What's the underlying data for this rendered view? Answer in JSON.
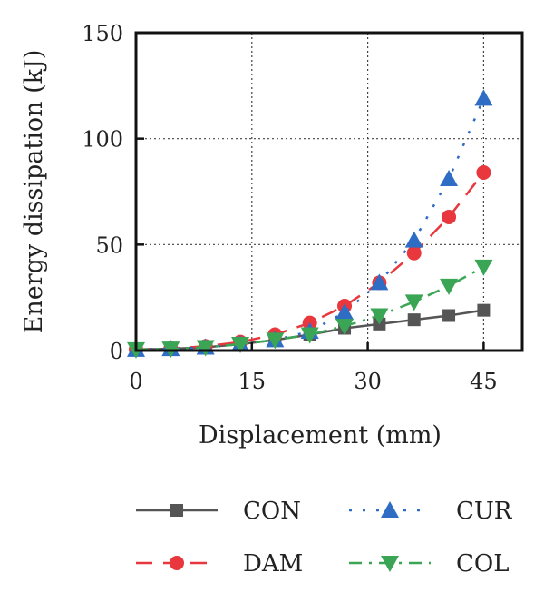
{
  "chart_data": {
    "type": "line",
    "title": "",
    "xlabel": "Displacement (mm)",
    "ylabel": "Energy dissipation (kJ)",
    "xlim": [
      0,
      50
    ],
    "ylim": [
      0,
      150
    ],
    "xticks": [
      0,
      15,
      30,
      45
    ],
    "yticks": [
      0,
      50,
      100,
      150
    ],
    "grid": true,
    "legend_position": "bottom",
    "series": [
      {
        "name": "CON",
        "color": "#555555",
        "marker": "square",
        "dash": "solid",
        "x": [
          0,
          4.5,
          9,
          13.5,
          18,
          22.5,
          27,
          31.5,
          36,
          40.5,
          45
        ],
        "y": [
          0.5,
          0.8,
          1.5,
          3,
          5,
          7.5,
          10.5,
          12.5,
          14.5,
          16.5,
          19
        ]
      },
      {
        "name": "DAM",
        "color": "#e8383d",
        "marker": "circle",
        "dash": "longdash",
        "x": [
          0,
          4.5,
          9,
          13.5,
          18,
          22.5,
          27,
          31.5,
          36,
          40.5,
          45
        ],
        "y": [
          0.5,
          1,
          2,
          4,
          7.5,
          13,
          21,
          32,
          46,
          63,
          84
        ]
      },
      {
        "name": "CUR",
        "color": "#2f6cc4",
        "marker": "triangle-up",
        "dash": "dotted",
        "x": [
          0,
          4.5,
          9,
          13.5,
          18,
          22.5,
          27,
          31.5,
          36,
          40.5,
          45
        ],
        "y": [
          0.5,
          0.8,
          1.5,
          3,
          5,
          9,
          18,
          32,
          52,
          81,
          119
        ]
      },
      {
        "name": "COL",
        "color": "#3aa655",
        "marker": "triangle-down",
        "dash": "dashdot",
        "x": [
          0,
          4.5,
          9,
          13.5,
          18,
          22.5,
          27,
          31.5,
          36,
          40.5,
          45
        ],
        "y": [
          0.5,
          0.8,
          1.5,
          3,
          5,
          7.5,
          11.5,
          16.5,
          23,
          30.5,
          39.5
        ]
      }
    ]
  }
}
